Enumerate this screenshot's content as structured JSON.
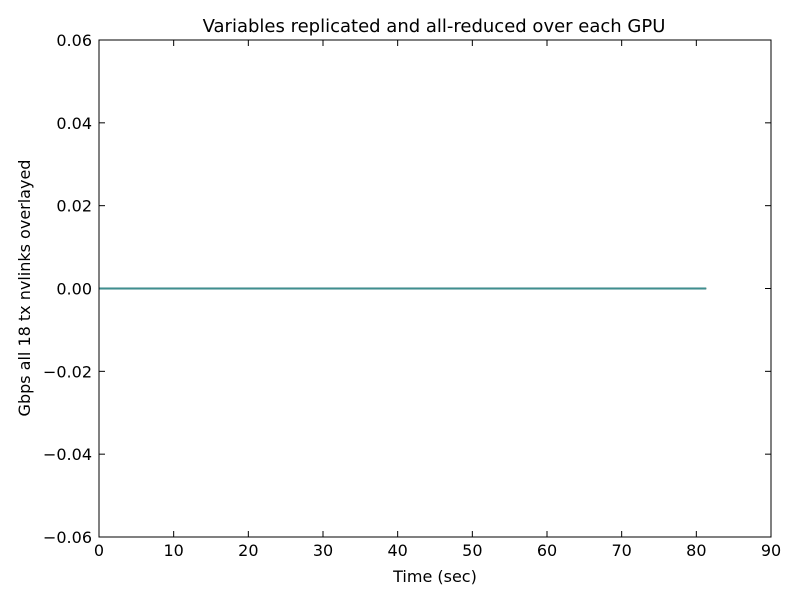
{
  "chart_data": {
    "type": "line",
    "title": "Variables replicated and all-reduced over each GPU",
    "xlabel": "Time (sec)",
    "ylabel": "Gbps all 18 tx nvlinks overlayed",
    "xlim": [
      0,
      90
    ],
    "ylim": [
      -0.06,
      0.06
    ],
    "xticks": [
      0,
      10,
      20,
      30,
      40,
      50,
      60,
      70,
      80,
      90
    ],
    "yticks": [
      0.06,
      0.04,
      0.02,
      0.0,
      -0.02,
      -0.04,
      -0.06
    ],
    "ytick_labels": [
      "0.06",
      "0.04",
      "0.02",
      "0.00",
      "−0.02",
      "−0.04",
      "−0.06"
    ],
    "grid": false,
    "legend": "none",
    "series_count": 18,
    "series": [
      {
        "color": "#1f77b4",
        "x": [
          0,
          81.3
        ],
        "values": [
          0,
          0
        ]
      },
      {
        "color": "#2ca02c",
        "x": [
          0,
          81.3
        ],
        "values": [
          0,
          0
        ]
      },
      {
        "color": "#d62728",
        "x": [
          0,
          81.3
        ],
        "values": [
          0,
          0
        ]
      },
      {
        "color": "#17becf",
        "x": [
          0,
          81.3
        ],
        "values": [
          0,
          0
        ]
      },
      {
        "color": "#9467bd",
        "x": [
          0,
          81.3
        ],
        "values": [
          0,
          0
        ]
      },
      {
        "color": "#bcbd22",
        "x": [
          0,
          81.3
        ],
        "values": [
          0,
          0
        ]
      },
      {
        "color": "#1f77b4",
        "x": [
          0,
          81.3
        ],
        "values": [
          0,
          0
        ]
      },
      {
        "color": "#2ca02c",
        "x": [
          0,
          81.3
        ],
        "values": [
          0,
          0
        ]
      },
      {
        "color": "#d62728",
        "x": [
          0,
          81.3
        ],
        "values": [
          0,
          0
        ]
      },
      {
        "color": "#17becf",
        "x": [
          0,
          81.3
        ],
        "values": [
          0,
          0
        ]
      },
      {
        "color": "#9467bd",
        "x": [
          0,
          81.3
        ],
        "values": [
          0,
          0
        ]
      },
      {
        "color": "#bcbd22",
        "x": [
          0,
          81.3
        ],
        "values": [
          0,
          0
        ]
      },
      {
        "color": "#1f77b4",
        "x": [
          0,
          81.3
        ],
        "values": [
          0,
          0
        ]
      },
      {
        "color": "#2ca02c",
        "x": [
          0,
          81.3
        ],
        "values": [
          0,
          0
        ]
      },
      {
        "color": "#d62728",
        "x": [
          0,
          81.3
        ],
        "values": [
          0,
          0
        ]
      },
      {
        "color": "#000000",
        "x": [
          0,
          81.3
        ],
        "values": [
          0,
          0
        ]
      },
      {
        "color": "#17becf",
        "x": [
          0,
          81.3
        ],
        "values": [
          0,
          0
        ]
      },
      {
        "color": "#3f8f8f",
        "x": [
          0,
          81.3
        ],
        "values": [
          0,
          0
        ]
      }
    ]
  }
}
